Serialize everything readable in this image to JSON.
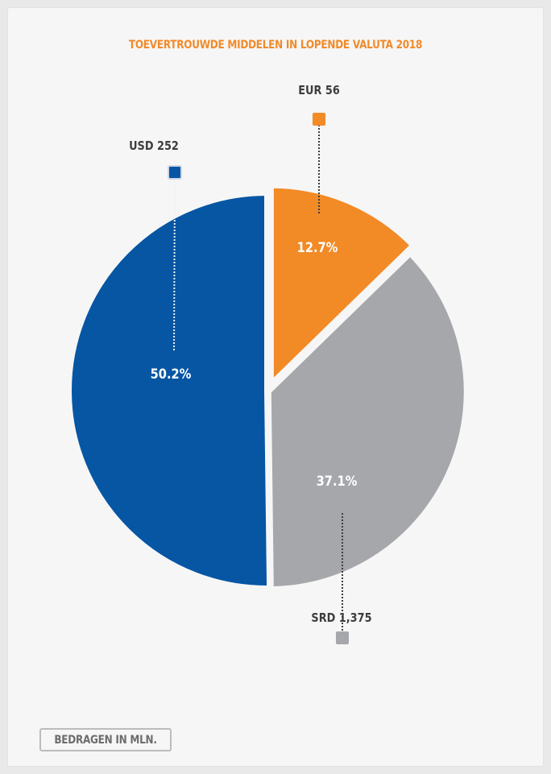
{
  "chart_data": {
    "type": "pie",
    "title": "TOEVERTROUWDE MIDDELEN IN LOPENDE VALUTA 2018",
    "slices": [
      {
        "label": "EUR 56",
        "percent_label": "12.7%",
        "value": 12.7,
        "color": "#f28a26"
      },
      {
        "label": "SRD 1,375",
        "percent_label": "37.1%",
        "value": 37.1,
        "color": "#a6a7ab"
      },
      {
        "label": "USD 252",
        "percent_label": "50.2%",
        "value": 50.2,
        "color": "#0656a4"
      }
    ],
    "note": "BEDRAGEN IN MLN."
  },
  "colors": {
    "title": "#f18a2a",
    "label_text": "#3d3d3d",
    "connector": "#555555"
  }
}
